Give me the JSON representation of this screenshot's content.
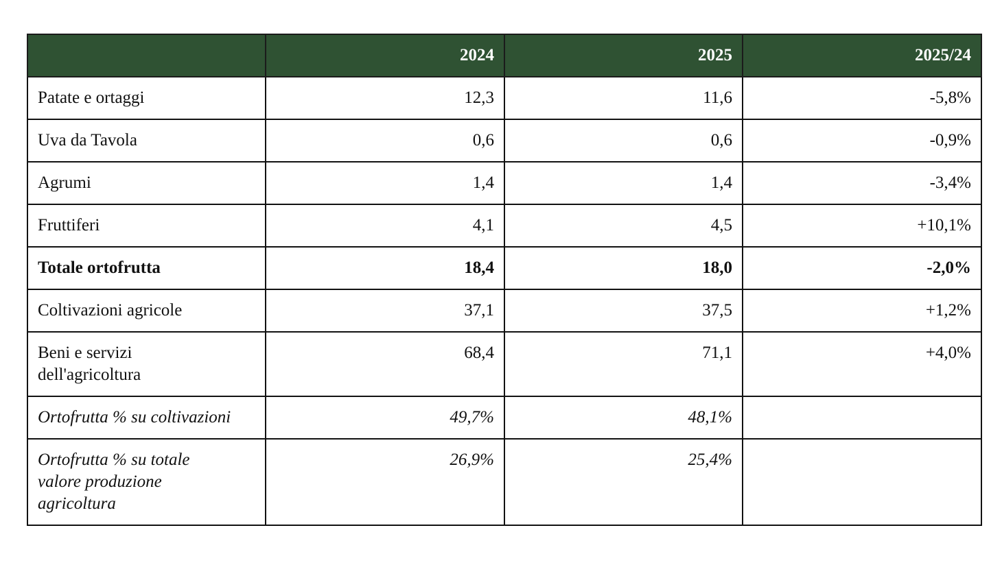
{
  "colors": {
    "header_bg": "#2f5233",
    "header_text": "#ffffff",
    "border": "#111111"
  },
  "table": {
    "headers": [
      "",
      "2024",
      "2025",
      "2025/24"
    ],
    "rows": [
      {
        "label": "Patate e ortaggi",
        "v2024": "12,3",
        "v2025": "11,6",
        "var": "-5,8%"
      },
      {
        "label": "Uva da Tavola",
        "v2024": "0,6",
        "v2025": "0,6",
        "var": "-0,9%"
      },
      {
        "label": "Agrumi",
        "v2024": "1,4",
        "v2025": "1,4",
        "var": "-3,4%"
      },
      {
        "label": "Fruttiferi",
        "v2024": "4,1",
        "v2025": "4,5",
        "var": "+10,1%"
      },
      {
        "label": "Totale ortofrutta",
        "v2024": "18,4",
        "v2025": "18,0",
        "var": "-2,0%"
      },
      {
        "label": "Coltivazioni agricole",
        "v2024": "37,1",
        "v2025": "37,5",
        "var": "+1,2%"
      },
      {
        "label": "Beni e servizi\ndell'agricoltura",
        "v2024": "68,4",
        "v2025": "71,1",
        "var": "+4,0%"
      },
      {
        "label": "Ortofrutta % su coltivazioni",
        "v2024": "49,7%",
        "v2025": "48,1%",
        "var": ""
      },
      {
        "label": "Ortofrutta % su totale\nvalore produzione\nagricoltura",
        "v2024": "26,9%",
        "v2025": "25,4%",
        "var": ""
      }
    ]
  }
}
